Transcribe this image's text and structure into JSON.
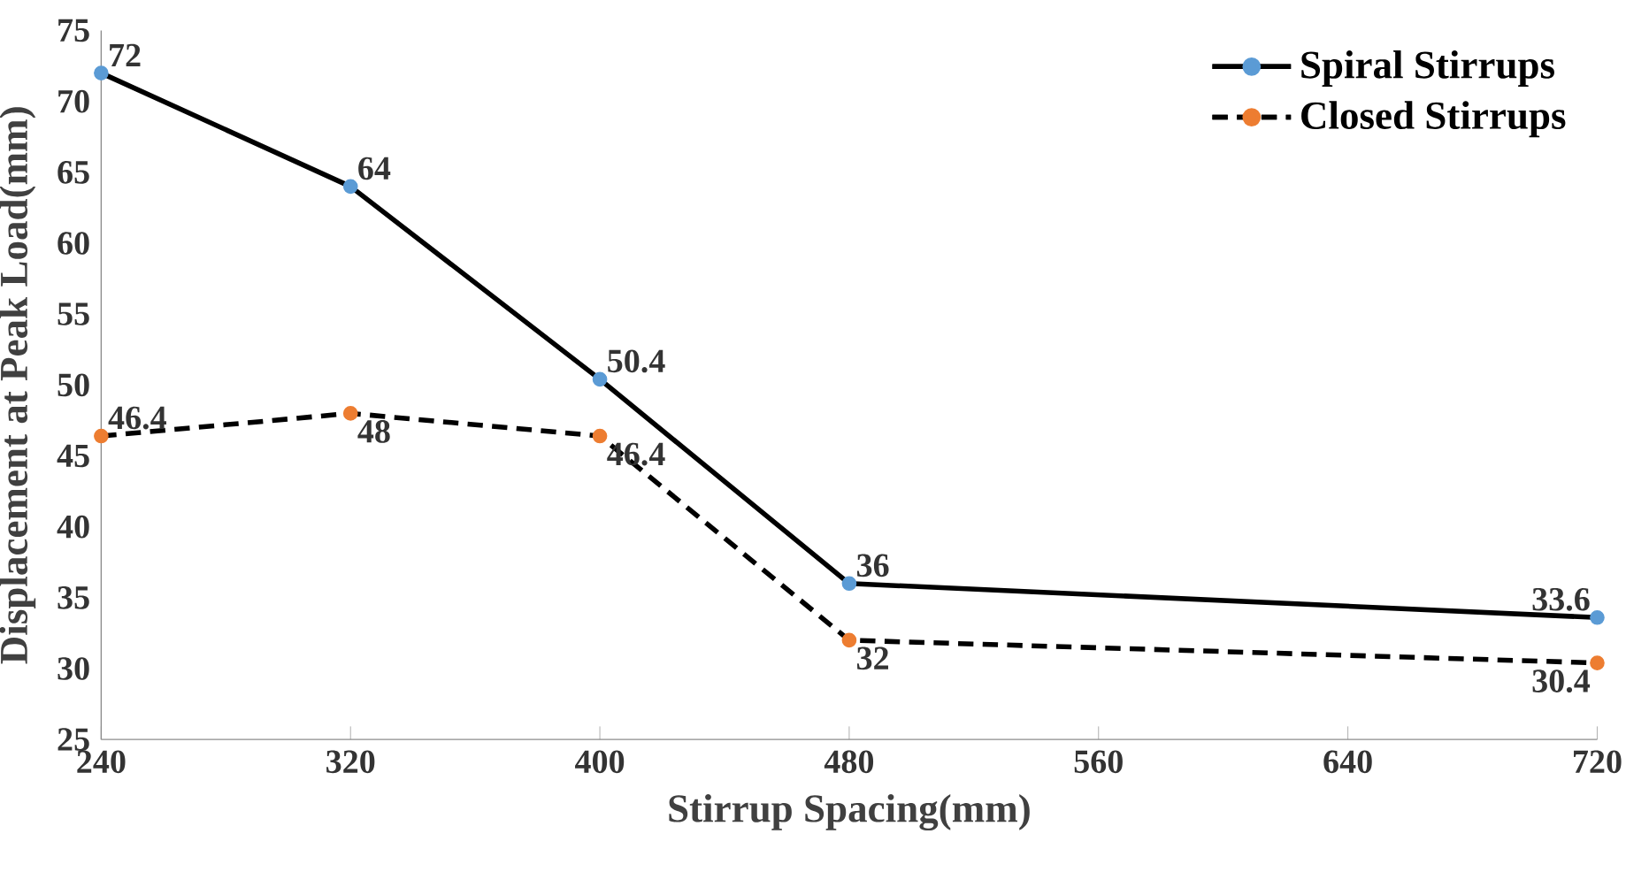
{
  "chart_data": {
    "type": "line",
    "xlabel": "Stirrup Spacing(mm)",
    "ylabel": "Displacement at Peak Load(mm)",
    "x": [
      240,
      320,
      400,
      480,
      720
    ],
    "series": [
      {
        "name": "Spiral Stirrups",
        "color": "#000000",
        "colors": [
          "#5b9bd5",
          "#5b9bd5",
          "#5b9bd5",
          "#5b9bd5",
          "#5b9bd5"
        ],
        "line_style": "solid",
        "values": [
          72,
          64,
          50.4,
          36,
          33.6
        ]
      },
      {
        "name": "Closed Stirrups",
        "color": "#000000",
        "colors": [
          "#ed7d31",
          "#ed7d31",
          "#ed7d31",
          "#ed7d31",
          "#ed7d31"
        ],
        "line_style": "dashed",
        "values": [
          46.4,
          48,
          46.4,
          32,
          30.4
        ]
      }
    ],
    "xlim": [
      240,
      720
    ],
    "xticks": [
      240,
      320,
      400,
      480,
      560,
      640,
      720
    ],
    "ylim": [
      25,
      75
    ],
    "yticks": [
      25,
      30,
      35,
      40,
      45,
      50,
      55,
      60,
      65,
      70,
      75
    ],
    "grid": false,
    "legend": "top right",
    "marker": "circle",
    "data_labels": true
  }
}
